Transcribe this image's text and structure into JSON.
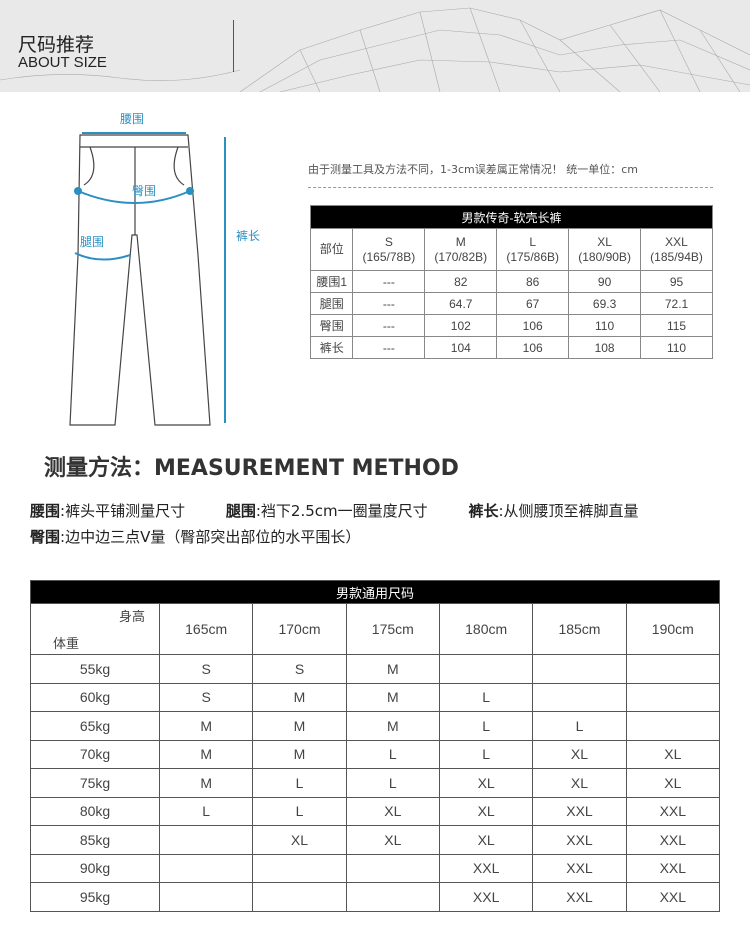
{
  "banner": {
    "title_cn": "尺码推荐",
    "title_en": "ABOUT SIZE"
  },
  "diagram": {
    "waist": "腰围",
    "hip": "臀围",
    "thigh": "腿围",
    "length": "裤长",
    "accent": "#2a8fc1"
  },
  "note": "由于测量工具及方法不同，1-3cm误差属正常情况！ 统一单位：cm",
  "table1": {
    "title": "男款传奇-软壳长裤",
    "corner": "部位",
    "sizes": [
      {
        "name": "S",
        "spec": "(165/78B)"
      },
      {
        "name": "M",
        "spec": "(170/82B)"
      },
      {
        "name": "L",
        "spec": "(175/86B)"
      },
      {
        "name": "XL",
        "spec": "(180/90B)"
      },
      {
        "name": "XXL",
        "spec": "(185/94B)"
      }
    ],
    "rows": [
      {
        "label": "腰围1",
        "values": [
          "---",
          "82",
          "86",
          "90",
          "95"
        ]
      },
      {
        "label": "腿围",
        "values": [
          "---",
          "64.7",
          "67",
          "69.3",
          "72.1"
        ]
      },
      {
        "label": "臀围",
        "values": [
          "---",
          "102",
          "106",
          "110",
          "115"
        ]
      },
      {
        "label": "裤长",
        "values": [
          "---",
          "104",
          "106",
          "108",
          "110"
        ]
      }
    ]
  },
  "method": {
    "title": "测量方法：MEASUREMENT METHOD",
    "items": [
      {
        "k": "腰围",
        "v": ":裤头平铺测量尺寸"
      },
      {
        "k": "腿围",
        "v": ":裆下2.5cm一圈量度尺寸"
      },
      {
        "k": "裤长",
        "v": ":从侧腰顶至裤脚直量"
      },
      {
        "k": "臀围",
        "v": ":边中边三点V量（臀部突出部位的水平围长）"
      }
    ]
  },
  "table2": {
    "title": "男款通用尺码",
    "corner_top": "身高",
    "corner_bottom": "体重",
    "heights": [
      "165cm",
      "170cm",
      "175cm",
      "180cm",
      "185cm",
      "190cm"
    ],
    "rows": [
      {
        "w": "55kg",
        "v": [
          "S",
          "S",
          "M",
          "",
          "",
          ""
        ]
      },
      {
        "w": "60kg",
        "v": [
          "S",
          "M",
          "M",
          "L",
          "",
          ""
        ]
      },
      {
        "w": "65kg",
        "v": [
          "M",
          "M",
          "M",
          "L",
          "L",
          ""
        ]
      },
      {
        "w": "70kg",
        "v": [
          "M",
          "M",
          "L",
          "L",
          "XL",
          "XL"
        ]
      },
      {
        "w": "75kg",
        "v": [
          "M",
          "L",
          "L",
          "XL",
          "XL",
          "XL"
        ]
      },
      {
        "w": "80kg",
        "v": [
          "L",
          "L",
          "XL",
          "XL",
          "XXL",
          "XXL"
        ]
      },
      {
        "w": "85kg",
        "v": [
          "",
          "XL",
          "XL",
          "XL",
          "XXL",
          "XXL"
        ]
      },
      {
        "w": "90kg",
        "v": [
          "",
          "",
          "",
          "XXL",
          "XXL",
          "XXL"
        ]
      },
      {
        "w": "95kg",
        "v": [
          "",
          "",
          "",
          "XXL",
          "XXL",
          "XXL"
        ]
      }
    ]
  }
}
